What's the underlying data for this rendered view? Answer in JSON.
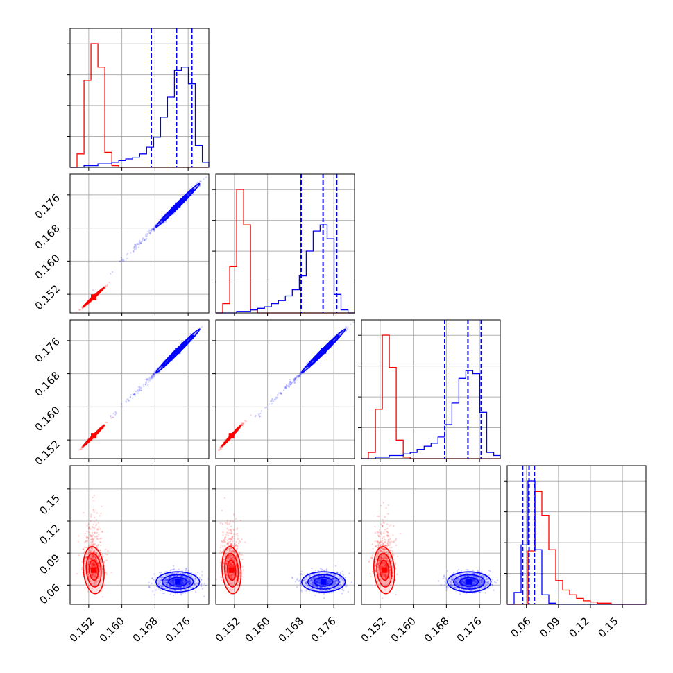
{
  "figure": {
    "type": "corner-plot",
    "n_params": 4
  },
  "colors": {
    "red": "#ff0000",
    "blue": "#0000ff",
    "grid": "#b0b0b0"
  },
  "ticks": {
    "p1": [
      "0.152",
      "0.160",
      "0.168",
      "0.176"
    ],
    "p2": [
      "0.152",
      "0.160",
      "0.168",
      "0.176"
    ],
    "p3": [
      "0.152",
      "0.160",
      "0.168",
      "0.176"
    ],
    "p4": [
      "0.06",
      "0.09",
      "0.12",
      "0.15"
    ]
  },
  "chart_data": {
    "type": "corner",
    "ranges": [
      [
        0.1475,
        0.181
      ],
      [
        0.1475,
        0.181
      ],
      [
        0.1475,
        0.181
      ],
      [
        0.042,
        0.172
      ]
    ],
    "tick_values": [
      [
        0.152,
        0.16,
        0.168,
        0.176
      ],
      [
        0.152,
        0.16,
        0.168,
        0.176
      ],
      [
        0.152,
        0.16,
        0.168,
        0.176
      ],
      [
        0.06,
        0.09,
        0.12,
        0.15
      ]
    ],
    "grid": true,
    "series": [
      {
        "color": "#ff0000",
        "means": [
          0.1532,
          0.1513,
          0.153,
          0.074
        ],
        "sds": [
          0.0012,
          0.0011,
          0.0012,
          0.0105
        ],
        "correlations": {
          "0-1": 0.99,
          "0-2": 0.99,
          "1-2": 0.99,
          "0-3": -0.15,
          "1-3": -0.15,
          "2-3": -0.15
        },
        "histograms": [
          {
            "edges_start": 0.1475,
            "bin_width": 0.00168,
            "counts": [
              0,
              8,
              52,
              74,
              60,
              9,
              1,
              0,
              0,
              0,
              0,
              0,
              0,
              0,
              0,
              0,
              0,
              0,
              0,
              0
            ]
          },
          {
            "edges_start": 0.1475,
            "bin_width": 0.00168,
            "counts": [
              0,
              6,
              30,
              80,
              57,
              2,
              0,
              0,
              0,
              0,
              0,
              0,
              0,
              0,
              0,
              0,
              0,
              0,
              0,
              0
            ]
          },
          {
            "edges_start": 0.1475,
            "bin_width": 0.00168,
            "counts": [
              0,
              4,
              32,
              80,
              59,
              12,
              1,
              0,
              0,
              0,
              0,
              0,
              0,
              0,
              0,
              0,
              0,
              0,
              0,
              0
            ]
          },
          {
            "edges_start": 0.042,
            "bin_width": 0.0065,
            "counts": [
              0,
              0,
              0,
              45,
              95,
              75,
              46,
              20,
              12,
              8,
              5,
              3,
              2,
              1,
              1,
              0,
              0,
              0,
              0,
              0
            ]
          }
        ],
        "quantiles": null
      },
      {
        "color": "#0000ff",
        "means": [
          0.1735,
          0.1735,
          0.1735,
          0.063
        ],
        "sds": [
          0.0025,
          0.0025,
          0.0025,
          0.0045
        ],
        "correlations": {
          "0-1": 0.99,
          "0-2": 0.99,
          "1-2": 0.99,
          "0-3": 0.0,
          "1-3": 0.0,
          "2-3": 0.0
        },
        "histograms": [
          {
            "edges_start": 0.1475,
            "bin_width": 0.00168,
            "counts": [
              0,
              0,
              1,
              1,
              2,
              2,
              3,
              4,
              5,
              6,
              8,
              12,
              18,
              30,
              42,
              58,
              60,
              50,
              13,
              3
            ]
          },
          {
            "edges_start": 0.1475,
            "bin_width": 0.00168,
            "counts": [
              0,
              0,
              0,
              1,
              1,
              2,
              3,
              4,
              6,
              8,
              11,
              15,
              24,
              40,
              53,
              57,
              48,
              12,
              2,
              0
            ]
          },
          {
            "edges_start": 0.1475,
            "bin_width": 0.00168,
            "counts": [
              0,
              0,
              1,
              1,
              2,
              2,
              3,
              4,
              6,
              8,
              10,
              14,
              22,
              36,
              52,
              57,
              55,
              30,
              4,
              2
            ]
          },
          {
            "edges_start": 0.042,
            "bin_width": 0.0065,
            "counts": [
              0,
              10,
              50,
              104,
              46,
              8,
              1,
              0,
              0,
              0,
              0,
              0,
              0,
              0,
              0,
              0,
              0,
              0,
              0,
              0
            ]
          }
        ],
        "quantiles": [
          [
            0.1671,
            0.1732,
            0.1769
          ],
          [
            0.1681,
            0.1734,
            0.1767
          ],
          [
            0.1676,
            0.1732,
            0.1764
          ],
          [
            0.0565,
            0.0625,
            0.0675
          ]
        ]
      }
    ]
  }
}
